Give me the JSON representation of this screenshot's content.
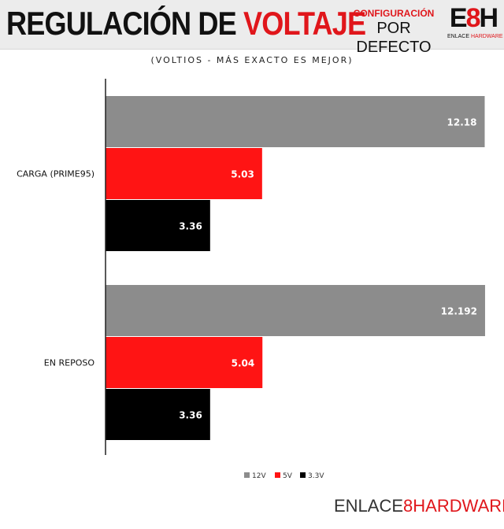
{
  "header": {
    "title_part1": "REGULACIÓN DE",
    "title_part2": "VOLTAJE",
    "config_line1": "CONFIGURACIÓN",
    "config_line2": "POR DEFECTO",
    "logo_mark_left": "E",
    "logo_mark_mid": "8",
    "logo_mark_right": "H",
    "logo_text_1": "ENLACE",
    "logo_text_2": "HARDWARE"
  },
  "footer": {
    "logo_text_1": "ENLACE",
    "logo_link": "8",
    "logo_text_2": "HARDWARE"
  },
  "colors": {
    "accent": "#e0161b",
    "s12v": "#8c8c8c",
    "s5v": "#ff1414",
    "s33v": "#000000"
  },
  "chart_data": {
    "type": "bar",
    "orientation": "horizontal",
    "subtitle": "(VOLTIOS - MÁS EXACTO ES MEJOR)",
    "categories": [
      "CARGA (PRIME95)",
      "EN REPOSO"
    ],
    "series": [
      {
        "name": "12V",
        "values": [
          12.18,
          12.192
        ],
        "labels": [
          "12.18",
          "12.192"
        ],
        "color": "#8c8c8c"
      },
      {
        "name": "5V",
        "values": [
          5.03,
          5.04
        ],
        "labels": [
          "5.03",
          "5.04"
        ],
        "color": "#ff1414"
      },
      {
        "name": "3.3V",
        "values": [
          3.36,
          3.36
        ],
        "labels": [
          "3.36",
          "3.36"
        ],
        "color": "#000000"
      }
    ],
    "xlim": [
      0,
      12.8
    ],
    "grid": false,
    "legend_position": "bottom"
  }
}
